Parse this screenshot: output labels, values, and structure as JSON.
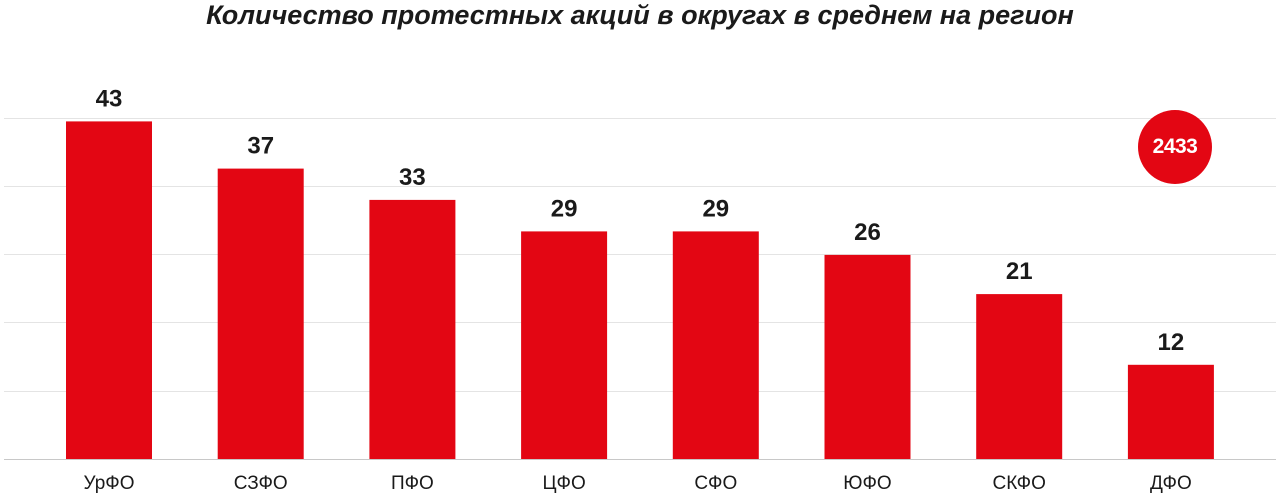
{
  "chart_data": {
    "type": "bar",
    "title": "Количество протестных акций в округах в среднем на регион",
    "categories": [
      "УрФО",
      "СЗФО",
      "ПФО",
      "ЦФО",
      "СФО",
      "ЮФО",
      "СКФО",
      "ДФО"
    ],
    "values": [
      43,
      37,
      33,
      29,
      29,
      26,
      21,
      12
    ],
    "xlabel": "",
    "ylabel": "",
    "ylim": [
      0,
      50
    ],
    "grid": true,
    "bar_color": "#e30613",
    "data_labels": true
  },
  "badge": {
    "value": "2433",
    "color": "#e30613"
  }
}
